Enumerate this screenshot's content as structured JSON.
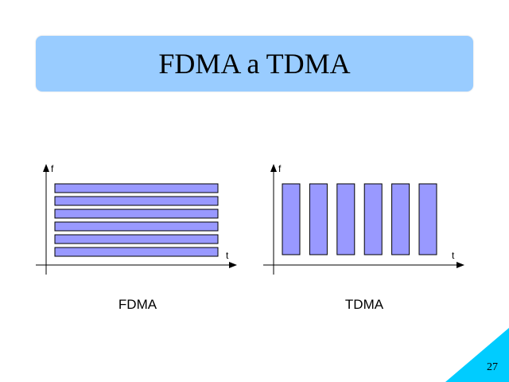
{
  "slide": {
    "title": "FDMA a TDMA",
    "page_number": "27",
    "colors": {
      "title_bg": "#99ccff",
      "bar_fill": "#9999ff",
      "corner": "#00ccff"
    }
  },
  "fdma": {
    "caption": "FDMA",
    "y_axis_label": "f",
    "x_axis_label": "t",
    "band_count": 6
  },
  "tdma": {
    "caption": "TDMA",
    "y_axis_label": "f",
    "x_axis_label": "t",
    "slot_count": 6
  }
}
